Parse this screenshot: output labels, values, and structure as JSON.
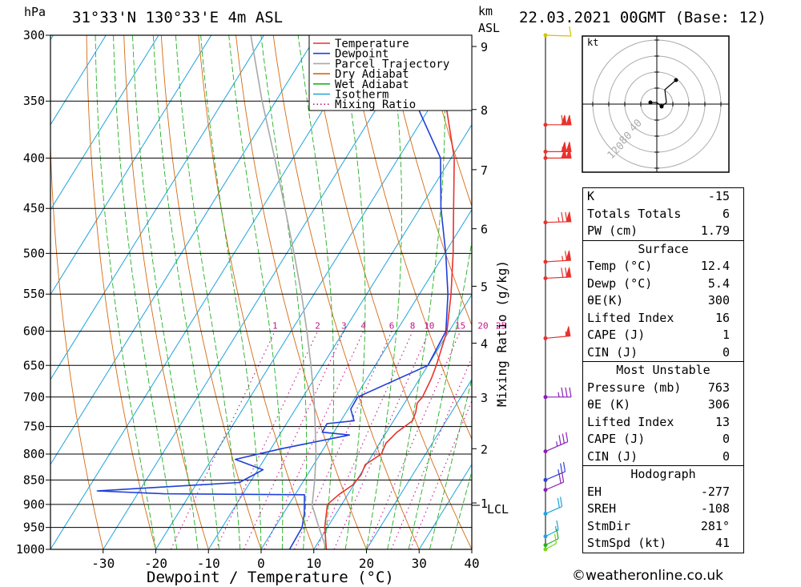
{
  "header": {
    "pressure_unit": "hPa",
    "location": "31°33'N  130°33'E  4m  ASL",
    "km_label": "km",
    "asl_label": "ASL",
    "datetime": "22.03.2021  00GMT  (Base: 12)"
  },
  "chart_data": {
    "type": "line",
    "xlabel": "Dewpoint / Temperature (°C)",
    "ylabel": "hPa",
    "y2label": "Mixing Ratio (g/kg)",
    "xlim": [
      -40,
      40
    ],
    "ylim": [
      1000,
      300
    ],
    "pressure_ticks": [
      300,
      350,
      400,
      450,
      500,
      550,
      600,
      650,
      700,
      750,
      800,
      850,
      900,
      950,
      1000
    ],
    "temperature_ticks": [
      -30,
      -20,
      -10,
      0,
      10,
      20,
      30,
      40
    ],
    "km_ticks": [
      {
        "km": "1",
        "p": 897
      },
      {
        "km": "2",
        "p": 790
      },
      {
        "km": "3",
        "p": 700
      },
      {
        "km": "4",
        "p": 617
      },
      {
        "km": "5",
        "p": 540
      },
      {
        "km": "6",
        "p": 472
      },
      {
        "km": "7",
        "p": 411
      },
      {
        "km": "8",
        "p": 357
      },
      {
        "km": "9",
        "p": 308
      }
    ],
    "lcl": {
      "label": "LCL",
      "p": 902
    },
    "mixing_ratio_labels": [
      "1",
      "2",
      "3",
      "4",
      "6",
      "8",
      "10",
      "15",
      "20",
      "25"
    ],
    "legend": [
      {
        "name": "Temperature",
        "color": "#e8322e",
        "style": "solid"
      },
      {
        "name": "Dewpoint",
        "color": "#1f3fd8",
        "style": "solid"
      },
      {
        "name": "Parcel Trajectory",
        "color": "#a8a8a8",
        "style": "solid"
      },
      {
        "name": "Dry Adiabat",
        "color": "#d46a12",
        "style": "solid"
      },
      {
        "name": "Wet Adiabat",
        "color": "#22b022",
        "style": "solid"
      },
      {
        "name": "Isotherm",
        "color": "#1ea3dc",
        "style": "solid"
      },
      {
        "name": "Mixing Ratio",
        "color": "#c0148c",
        "style": "dotted"
      }
    ],
    "series": [
      {
        "name": "Temperature",
        "color": "#e8322e",
        "points": [
          [
            1000,
            12.4
          ],
          [
            950,
            9.5
          ],
          [
            900,
            7.3
          ],
          [
            880,
            8.3
          ],
          [
            860,
            9.8
          ],
          [
            840,
            10.2
          ],
          [
            820,
            9.8
          ],
          [
            800,
            11.6
          ],
          [
            780,
            11.2
          ],
          [
            760,
            12.0
          ],
          [
            740,
            13.6
          ],
          [
            725,
            13.2
          ],
          [
            710,
            12.4
          ],
          [
            700,
            12.7
          ],
          [
            670,
            12.2
          ],
          [
            650,
            11.6
          ],
          [
            600,
            9.6
          ],
          [
            550,
            6.0
          ],
          [
            500,
            1.6
          ],
          [
            450,
            -3.6
          ],
          [
            400,
            -9.4
          ],
          [
            350,
            -17.8
          ],
          [
            330,
            -21.7
          ],
          [
            300,
            -24.6
          ]
        ]
      },
      {
        "name": "Dewpoint",
        "color": "#1f3fd8",
        "points": [
          [
            1000,
            5.4
          ],
          [
            950,
            5.2
          ],
          [
            920,
            4.0
          ],
          [
            880,
            1.8
          ],
          [
            878,
            -25
          ],
          [
            872,
            -38
          ],
          [
            855,
            -12
          ],
          [
            830,
            -9
          ],
          [
            810,
            -15.5
          ],
          [
            790,
            -8
          ],
          [
            765,
            3.3
          ],
          [
            760,
            -2.2
          ],
          [
            745,
            -2.3
          ],
          [
            740,
            2.5
          ],
          [
            720,
            0.5
          ],
          [
            700,
            0.4
          ],
          [
            650,
            10.0
          ],
          [
            600,
            9.4
          ],
          [
            550,
            5.4
          ],
          [
            500,
            0.2
          ],
          [
            450,
            -6.0
          ],
          [
            400,
            -12.0
          ],
          [
            350,
            -23.6
          ],
          [
            330,
            -25.0
          ],
          [
            320,
            -19.0
          ],
          [
            300,
            -15.0
          ]
        ]
      },
      {
        "name": "Parcel Trajectory",
        "color": "#a8a8a8",
        "points": [
          [
            1000,
            12.4
          ],
          [
            950,
            8.4
          ],
          [
            902,
            4.5
          ],
          [
            850,
            2.0
          ],
          [
            800,
            -0.8
          ],
          [
            750,
            -4.2
          ],
          [
            700,
            -7.9
          ],
          [
            650,
            -12.2
          ],
          [
            600,
            -17.0
          ],
          [
            550,
            -22.4
          ],
          [
            500,
            -28.6
          ],
          [
            450,
            -35.6
          ],
          [
            400,
            -43.5
          ],
          [
            350,
            -52.6
          ],
          [
            300,
            -62.5
          ]
        ]
      }
    ],
    "wind_barbs": [
      {
        "p": 300,
        "speed_kt": 10,
        "dir": 275,
        "color": "#d4c400"
      },
      {
        "p": 370,
        "speed_kt": 110,
        "dir": 270,
        "color": "#e8322e"
      },
      {
        "p": 394,
        "speed_kt": 105,
        "dir": 270,
        "color": "#e8322e"
      },
      {
        "p": 400,
        "speed_kt": 100,
        "dir": 270,
        "color": "#e8322e"
      },
      {
        "p": 465,
        "speed_kt": 75,
        "dir": 265,
        "color": "#e8322e"
      },
      {
        "p": 510,
        "speed_kt": 65,
        "dir": 260,
        "color": "#e8322e"
      },
      {
        "p": 530,
        "speed_kt": 70,
        "dir": 262,
        "color": "#e8322e"
      },
      {
        "p": 610,
        "speed_kt": 55,
        "dir": 255,
        "color": "#e8322e"
      },
      {
        "p": 700,
        "speed_kt": 35,
        "dir": 270,
        "color": "#8a20b8"
      },
      {
        "p": 795,
        "speed_kt": 35,
        "dir": 300,
        "color": "#8a20b8"
      },
      {
        "p": 850,
        "speed_kt": 25,
        "dir": 310,
        "color": "#3040d0"
      },
      {
        "p": 870,
        "speed_kt": 20,
        "dir": 315,
        "color": "#8a20b8"
      },
      {
        "p": 920,
        "speed_kt": 20,
        "dir": 320,
        "color": "#1ea3dc"
      },
      {
        "p": 970,
        "speed_kt": 15,
        "dir": 330,
        "color": "#1ea3dc"
      },
      {
        "p": 990,
        "speed_kt": 10,
        "dir": 330,
        "color": "#22b022"
      },
      {
        "p": 1000,
        "speed_kt": 10,
        "dir": 335,
        "color": "#7ed321"
      }
    ],
    "hodograph": {
      "unit": "kt",
      "ring_labels": [
        "40",
        "80",
        "120"
      ],
      "points": [
        [
          -8,
          2
        ],
        [
          0,
          2
        ],
        [
          6,
          -3
        ],
        [
          12,
          2
        ],
        [
          10,
          18
        ],
        [
          24,
          30
        ]
      ],
      "storm_motion": {
        "dir": 281,
        "speed_kt": 41
      }
    }
  },
  "indices": [
    {
      "label": "K",
      "value": "-15"
    },
    {
      "label": "Totals Totals",
      "value": "6"
    },
    {
      "label": "PW (cm)",
      "value": "1.79"
    }
  ],
  "surface": {
    "title": "Surface",
    "rows": [
      {
        "label": "Temp (°C)",
        "value": "12.4"
      },
      {
        "label": "Dewp (°C)",
        "value": "5.4"
      },
      {
        "label": "θE(K)",
        "value": "300"
      },
      {
        "label": "Lifted Index",
        "value": "16"
      },
      {
        "label": "CAPE (J)",
        "value": "1"
      },
      {
        "label": "CIN (J)",
        "value": "0"
      }
    ]
  },
  "most_unstable": {
    "title": "Most Unstable",
    "rows": [
      {
        "label": "Pressure (mb)",
        "value": "763"
      },
      {
        "label": "θE (K)",
        "value": "306"
      },
      {
        "label": "Lifted Index",
        "value": "13"
      },
      {
        "label": "CAPE (J)",
        "value": "0"
      },
      {
        "label": "CIN (J)",
        "value": "0"
      }
    ]
  },
  "hodograph_table": {
    "title": "Hodograph",
    "rows": [
      {
        "label": "EH",
        "value": "-277"
      },
      {
        "label": "SREH",
        "value": "-108"
      },
      {
        "label": "StmDir",
        "value": "281°"
      },
      {
        "label": "StmSpd (kt)",
        "value": "41"
      }
    ]
  },
  "footer": {
    "copyright": "©weatheronline.co.uk"
  }
}
